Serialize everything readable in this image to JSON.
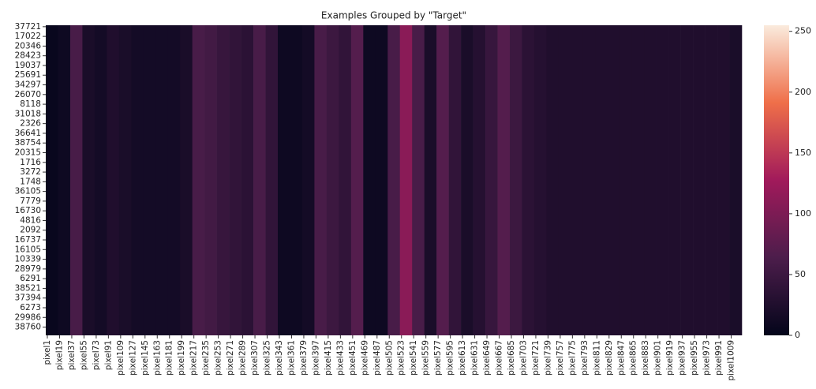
{
  "chart_data": {
    "type": "heatmap",
    "title": "Examples Grouped by \"Target\"",
    "rows": [
      "37721",
      "17022",
      "20346",
      "28423",
      "19037",
      "25691",
      "34297",
      "26070",
      "8118",
      "31018",
      "2326",
      "36641",
      "38754",
      "20315",
      "1716",
      "3272",
      "1748",
      "36105",
      "7779",
      "16730",
      "4816",
      "2092",
      "16737",
      "16105",
      "10339",
      "28979",
      "6291",
      "38521",
      "37394",
      "6273",
      "29986",
      "38760"
    ],
    "categories": [
      "pixel1",
      "pixel19",
      "pixel37",
      "pixel55",
      "pixel73",
      "pixel91",
      "pixel109",
      "pixel127",
      "pixel145",
      "pixel163",
      "pixel181",
      "pixel199",
      "pixel217",
      "pixel235",
      "pixel253",
      "pixel271",
      "pixel289",
      "pixel307",
      "pixel325",
      "pixel343",
      "pixel361",
      "pixel379",
      "pixel397",
      "pixel415",
      "pixel433",
      "pixel451",
      "pixel469",
      "pixel487",
      "pixel505",
      "pixel523",
      "pixel541",
      "pixel559",
      "pixel577",
      "pixel595",
      "pixel613",
      "pixel631",
      "pixel649",
      "pixel667",
      "pixel685",
      "pixel703",
      "pixel721",
      "pixel739",
      "pixel757",
      "pixel775",
      "pixel793",
      "pixel811",
      "pixel829",
      "pixel847",
      "pixel865",
      "pixel883",
      "pixel901",
      "pixel919",
      "pixel937",
      "pixel955",
      "pixel973",
      "pixel991",
      "pixel1009"
    ],
    "values": [
      5,
      10,
      60,
      20,
      15,
      25,
      20,
      15,
      15,
      15,
      15,
      20,
      60,
      55,
      45,
      40,
      35,
      60,
      40,
      10,
      10,
      15,
      60,
      50,
      40,
      70,
      10,
      10,
      60,
      110,
      60,
      20,
      70,
      40,
      20,
      30,
      45,
      70,
      50,
      35,
      30,
      25,
      25,
      25,
      25,
      25,
      25,
      25,
      25,
      25,
      25,
      25,
      25,
      25,
      25,
      25,
      20
    ],
    "colorbar_lim": [
      0,
      255
    ],
    "colorbar_ticks": [
      0,
      50,
      100,
      150,
      200,
      250
    ]
  }
}
